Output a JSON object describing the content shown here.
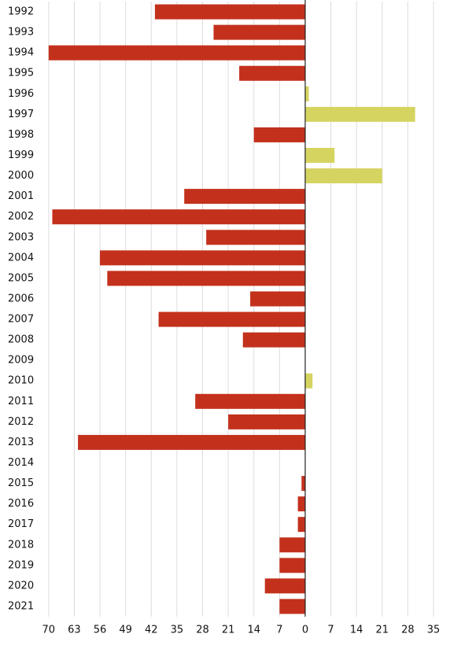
{
  "chart_data": {
    "type": "bar",
    "orientation": "horizontal",
    "categories": [
      "1992",
      "1993",
      "1994",
      "1995",
      "1996",
      "1997",
      "1998",
      "1999",
      "2000",
      "2001",
      "2002",
      "2003",
      "2004",
      "2005",
      "2006",
      "2007",
      "2008",
      "2009",
      "2010",
      "2011",
      "2012",
      "2013",
      "2014",
      "2015",
      "2016",
      "2017",
      "2018",
      "2019",
      "2020",
      "2021"
    ],
    "values": [
      -41,
      -25,
      -70,
      -18,
      1,
      30,
      -14,
      8,
      21,
      -33,
      -69,
      -27,
      -56,
      -54,
      -15,
      -40,
      -17,
      0,
      2,
      -30,
      -21,
      -62,
      0,
      -1,
      -2,
      -2,
      -7,
      -7,
      -11,
      -7
    ],
    "negative_color": "#c3311c",
    "positive_color": "#d6d461",
    "xlim": [
      -72,
      38
    ],
    "xticks": [
      {
        "value": -70,
        "label": "70"
      },
      {
        "value": -63,
        "label": "63"
      },
      {
        "value": -56,
        "label": "56"
      },
      {
        "value": -49,
        "label": "49"
      },
      {
        "value": -42,
        "label": "42"
      },
      {
        "value": -35,
        "label": "35"
      },
      {
        "value": -28,
        "label": "28"
      },
      {
        "value": -21,
        "label": "21"
      },
      {
        "value": -14,
        "label": "14"
      },
      {
        "value": -7,
        "label": "7"
      },
      0,
      7,
      14,
      21,
      28,
      35
    ],
    "grid": true
  }
}
